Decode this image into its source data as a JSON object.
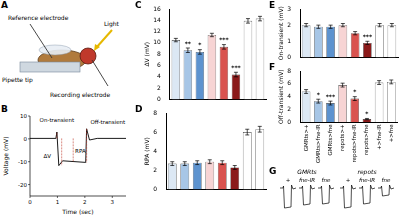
{
  "panels": {
    "A": {
      "title": "A",
      "labels": [
        "Reference electrode",
        "Light",
        "Pipette tip",
        "Recording electrode"
      ]
    },
    "B": {
      "title": "B",
      "y_label": "Voltage (mV)",
      "x_label": "Time (sec)",
      "ylim": [
        -25,
        10
      ],
      "yticks": [
        10,
        0,
        -10,
        -20
      ],
      "xlim": [
        0,
        3.5
      ],
      "xticks": [
        0,
        1,
        2,
        3
      ],
      "annotations": [
        "On-transient",
        "RPA",
        "Off-transient",
        "ΔV"
      ]
    },
    "G": {
      "title": "G",
      "groups": [
        "GMRts",
        "repots"
      ],
      "traces": [
        "+",
        "fne-IR",
        "fne"
      ]
    }
  },
  "chart_data": [
    {
      "type": "bar",
      "title": "C",
      "y_label": "ΔV (mV)",
      "categories": [
        "GMRts>+",
        "GMRts>fne-IR",
        "GMRts>fne",
        "repots>+",
        "repots>fne-IR",
        "repots>fne",
        "+>fne-IR",
        "+>fne"
      ],
      "values": [
        10.5,
        8.7,
        8.4,
        11.4,
        9.3,
        4.4,
        13.9,
        14.3
      ],
      "errors": [
        0.3,
        0.4,
        0.4,
        0.3,
        0.4,
        0.4,
        0.4,
        0.4
      ],
      "significance": [
        null,
        "**",
        "*",
        null,
        "***",
        "***",
        null,
        null
      ],
      "colors": [
        "#dce8f4",
        "#a7c6e6",
        "#5d93cf",
        "#f7d4d4",
        "#d9534f",
        "#8b1a1a",
        "#ffffff",
        "#ffffff"
      ],
      "ylim": [
        0,
        16
      ],
      "yticks": [
        0,
        2,
        4,
        6,
        8,
        10,
        12,
        14,
        16
      ],
      "grid": false,
      "tick_labels": "y"
    },
    {
      "type": "bar",
      "title": "D",
      "y_label": "RPA (mV)",
      "categories": [
        "GMRts>+",
        "GMRts>fne-IR",
        "GMRts>fne",
        "repots>+",
        "repots>fne-IR",
        "repots>fne",
        "+>fne-IR",
        "+>fne"
      ],
      "values": [
        2.7,
        2.7,
        2.8,
        2.9,
        2.8,
        2.3,
        6.0,
        6.3
      ],
      "errors": [
        0.2,
        0.2,
        0.2,
        0.2,
        0.2,
        0.2,
        0.3,
        0.3
      ],
      "colors": [
        "#dce8f4",
        "#a7c6e6",
        "#5d93cf",
        "#f7d4d4",
        "#d9534f",
        "#8b1a1a",
        "#ffffff",
        "#ffffff"
      ],
      "ylim": [
        0,
        8
      ],
      "yticks": [
        0,
        2,
        4,
        6,
        8
      ],
      "grid": false,
      "tick_labels": "y"
    },
    {
      "type": "bar",
      "title": "E",
      "y_label": "On-transient (mV)",
      "categories": [
        "GMRts>+",
        "GMRts>fne-IR",
        "GMRts>fne",
        "repots>+",
        "repots>fne-IR",
        "repots>fne",
        "+>fne-IR",
        "+>fne"
      ],
      "values": [
        2.0,
        1.9,
        1.9,
        2.0,
        1.5,
        0.9,
        2.0,
        2.0
      ],
      "errors": [
        0.1,
        0.1,
        0.1,
        0.1,
        0.1,
        0.1,
        0.1,
        0.1
      ],
      "significance": [
        null,
        null,
        null,
        null,
        null,
        "***",
        null,
        null
      ],
      "colors": [
        "#dce8f4",
        "#a7c6e6",
        "#5d93cf",
        "#f7d4d4",
        "#d9534f",
        "#8b1a1a",
        "#ffffff",
        "#ffffff"
      ],
      "ylim": [
        0,
        3
      ],
      "yticks": [
        0,
        1,
        2,
        3
      ],
      "grid": false,
      "tick_labels": "y"
    },
    {
      "type": "bar",
      "title": "F",
      "y_label": "Off-transient (mV)",
      "categories": [
        "GMRts>+",
        "GMRts>fne-IR",
        "GMRts>fne",
        "repots>+",
        "repots>fne-IR",
        "repots>fne",
        "+>fne-IR",
        "+>fne"
      ],
      "values": [
        4.8,
        3.3,
        3.0,
        5.8,
        3.7,
        0.5,
        6.2,
        6.3
      ],
      "errors": [
        0.3,
        0.3,
        0.3,
        0.3,
        0.3,
        0.1,
        0.3,
        0.3
      ],
      "significance": [
        null,
        "*",
        "***",
        null,
        "*",
        "*",
        null,
        null
      ],
      "colors": [
        "#dce8f4",
        "#a7c6e6",
        "#5d93cf",
        "#f7d4d4",
        "#d9534f",
        "#8b1a1a",
        "#ffffff",
        "#ffffff"
      ],
      "ylim": [
        0,
        8
      ],
      "yticks": [
        0,
        2,
        4,
        6,
        8
      ],
      "grid": false
    }
  ]
}
